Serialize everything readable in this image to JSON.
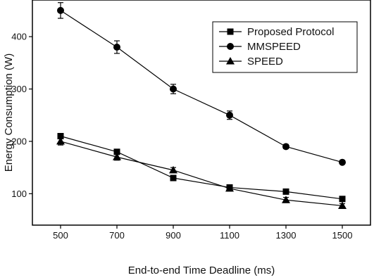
{
  "chart_data": {
    "type": "line",
    "title": "",
    "xlabel": "End-to-end Time Deadline (ms)",
    "ylabel": "Energy Consumption (W)",
    "x": [
      500,
      700,
      900,
      1100,
      1300,
      1500
    ],
    "xlim": [
      400,
      1600
    ],
    "ylim": [
      40,
      470
    ],
    "xticks": [
      500,
      700,
      900,
      1100,
      1300,
      1500
    ],
    "yticks": [
      100,
      200,
      300,
      400
    ],
    "grid": false,
    "legend_position": "top-right",
    "series": [
      {
        "name": "Proposed Protocol",
        "marker": "square",
        "values": [
          210,
          180,
          130,
          112,
          104,
          90
        ],
        "errors": [
          0,
          0,
          0,
          0,
          0,
          0
        ]
      },
      {
        "name": "MMSPEED",
        "marker": "circle",
        "values": [
          450,
          380,
          300,
          250,
          190,
          160
        ],
        "errors": [
          15,
          12,
          9,
          8,
          4,
          3
        ]
      },
      {
        "name": "SPEED",
        "marker": "triangle",
        "values": [
          200,
          170,
          145,
          110,
          88,
          77
        ],
        "errors": [
          7,
          6,
          5,
          5,
          5,
          4
        ]
      }
    ]
  },
  "colors": {
    "line": "#000000",
    "background": "#ffffff"
  }
}
